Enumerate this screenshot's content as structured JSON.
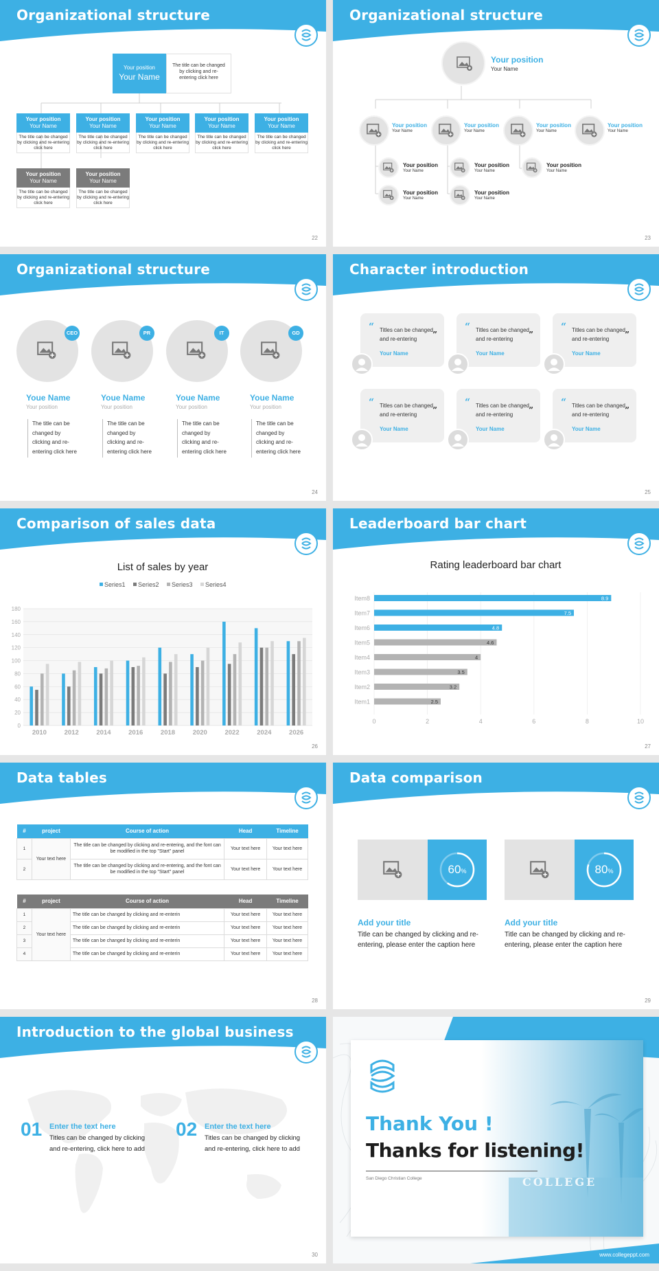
{
  "colors": {
    "accent": "#3db0e4",
    "gray_box": "#7b7b7b",
    "light_gray": "#e3e3e3"
  },
  "s22": {
    "title": "Organizational structure",
    "top_position": "Your position",
    "top_name": "Your Name",
    "top_desc": "The title can be changed by clicking and re-entering click here",
    "row1": [
      {
        "pos": "Your position",
        "name": "Your Name",
        "desc": "The title can be changed by clicking and re-entering click here"
      },
      {
        "pos": "Your position",
        "name": "Your Name",
        "desc": "The title can be changed by clicking and re-entering click here"
      },
      {
        "pos": "Your position",
        "name": "Your Name",
        "desc": "The title can be changed by clicking and re-entering click here"
      },
      {
        "pos": "Your position",
        "name": "Your Name",
        "desc": "The title can be changed by clicking and re-entering click here"
      },
      {
        "pos": "Your position",
        "name": "Your Name",
        "desc": "The title can be changed by clicking and re-entering click here"
      }
    ],
    "row2": [
      {
        "pos": "Your position",
        "name": "Your Name",
        "desc": "The title can be changed by clicking and re-entering click here"
      },
      {
        "pos": "Your position",
        "name": "Your Name",
        "desc": "The title can be changed by clicking and re-entering click here"
      }
    ],
    "page": "22"
  },
  "s23": {
    "title": "Organizational structure",
    "top_position": "Your position",
    "top_name": "Your Name",
    "mid": [
      {
        "pos": "Your position",
        "name": "Your Name"
      },
      {
        "pos": "Your position",
        "name": "Your Name"
      },
      {
        "pos": "Your position",
        "name": "Your Name"
      },
      {
        "pos": "Your position",
        "name": "Your Name"
      }
    ],
    "sub": [
      {
        "pos": "Your position",
        "name": "Your Name"
      },
      {
        "pos": "Your position",
        "name": "Your Name"
      },
      {
        "pos": "Your position",
        "name": "Your Name"
      },
      {
        "pos": "Your position",
        "name": "Your Name"
      },
      {
        "pos": "Your position",
        "name": "Your Name"
      }
    ],
    "page": "23"
  },
  "s24": {
    "title": "Organizational structure",
    "people": [
      {
        "badge": "CEO",
        "name": "Youe Name",
        "pos": "Your position",
        "desc": "The title can be changed by clicking and re-entering click here"
      },
      {
        "badge": "PR",
        "name": "Youe Name",
        "pos": "Your position",
        "desc": "The title can be changed by clicking and re-entering click here"
      },
      {
        "badge": "IT",
        "name": "Youe Name",
        "pos": "Your position",
        "desc": "The title can be changed by clicking and re-entering click here"
      },
      {
        "badge": "GD",
        "name": "Youe Name",
        "pos": "Your position",
        "desc": "The title can be changed by clicking and re-entering click here"
      }
    ],
    "page": "24"
  },
  "s25": {
    "title": "Character introduction",
    "card_text": "Titles can be changed and re-entering",
    "card_name": "Your Name",
    "page": "25"
  },
  "s26": {
    "title": "Comparison of sales data",
    "page": "26"
  },
  "s27": {
    "title": "Leaderboard bar chart",
    "page": "27"
  },
  "s28": {
    "title": "Data tables",
    "headers": [
      "#",
      "project",
      "Course of action",
      "Head",
      "Timeline"
    ],
    "t1": {
      "project": "Your text here",
      "rows": [
        {
          "n": "1",
          "action": "The title can be changed by clicking and re-entering, and the font can be modified in the top \"Start\" panel",
          "head": "Your text here",
          "time": "Your text here"
        },
        {
          "n": "2",
          "action": "The title can be changed by clicking and re-entering, and the font can be modified in the top \"Start\" panel",
          "head": "Your text here",
          "time": "Your text here"
        }
      ]
    },
    "t2": {
      "project": "Your text here",
      "rows": [
        {
          "n": "1",
          "action": "The title can be changed by clicking and re-enterin",
          "head": "Your text here",
          "time": "Your text here"
        },
        {
          "n": "2",
          "action": "The title can be changed by clicking and re-enterin",
          "head": "Your text here",
          "time": "Your text here"
        },
        {
          "n": "3",
          "action": "The title can be changed by clicking and re-enterin",
          "head": "Your text here",
          "time": "Your text here"
        },
        {
          "n": "4",
          "action": "The title can be changed by clicking and re-enterin",
          "head": "Your text here",
          "time": "Your text here"
        }
      ]
    },
    "page": "28"
  },
  "s29": {
    "title": "Data comparison",
    "items": [
      {
        "value": 60,
        "unit": "%",
        "label": "60",
        "title": "Add your title",
        "desc": "Title can be changed by clicking and re-entering, please enter the caption here"
      },
      {
        "value": 80,
        "unit": "%",
        "label": "80",
        "title": "Add your title",
        "desc": "Title can be changed by clicking and re-entering, please enter the caption here"
      }
    ],
    "page": "29"
  },
  "s30": {
    "title": "Introduction to the global business",
    "items": [
      {
        "num": "01",
        "head": "Enter the text here",
        "desc": "Titles can be changed by clicking and re-entering, click here to add"
      },
      {
        "num": "02",
        "head": "Enter the text here",
        "desc": "Titles can be changed by clicking and re-entering, click here to add"
      }
    ],
    "page": "30"
  },
  "s31": {
    "thanks": "Thank You !",
    "listening": "Thanks for listening!",
    "college": "San Diego Christian College",
    "sign": "COLLEGE",
    "url": "www.collegeppt.com"
  },
  "chart_data": [
    {
      "type": "bar",
      "title": "List of sales by year",
      "categories": [
        "2010",
        "2012",
        "2014",
        "2016",
        "2018",
        "2020",
        "2022",
        "2024",
        "2026"
      ],
      "ylim": [
        0,
        180
      ],
      "yticks": [
        0,
        20,
        40,
        60,
        80,
        100,
        120,
        140,
        160,
        180
      ],
      "legend": "top",
      "series": [
        {
          "name": "Series1",
          "color": "#3db0e4",
          "values": [
            60,
            80,
            90,
            100,
            120,
            110,
            160,
            150,
            130
          ]
        },
        {
          "name": "Series2",
          "color": "#7b7b7b",
          "values": [
            55,
            60,
            80,
            90,
            80,
            90,
            95,
            120,
            110
          ]
        },
        {
          "name": "Series3",
          "color": "#b3b3b3",
          "values": [
            80,
            85,
            88,
            92,
            98,
            100,
            110,
            120,
            130
          ]
        },
        {
          "name": "Series4",
          "color": "#d6d6d6",
          "values": [
            95,
            98,
            100,
            105,
            110,
            120,
            128,
            130,
            135
          ]
        }
      ]
    },
    {
      "type": "bar",
      "orientation": "horizontal",
      "title": "Rating leaderboard bar chart",
      "categories": [
        "Item8",
        "Item7",
        "Item6",
        "Item5",
        "Item4",
        "Item3",
        "Item2",
        "Item1"
      ],
      "values": [
        8.9,
        7.5,
        4.8,
        4.6,
        4,
        3.5,
        3.2,
        2.5
      ],
      "labels": [
        "8.9",
        "7.5",
        "4.8",
        "4.6",
        "4",
        "3.5",
        "3.2",
        "2.5"
      ],
      "colors": [
        "#3db0e4",
        "#3db0e4",
        "#3db0e4",
        "#b3b3b3",
        "#b3b3b3",
        "#b3b3b3",
        "#b3b3b3",
        "#b3b3b3"
      ],
      "xlim": [
        0,
        10
      ],
      "xticks": [
        0,
        2,
        4,
        6,
        8,
        10
      ]
    }
  ]
}
